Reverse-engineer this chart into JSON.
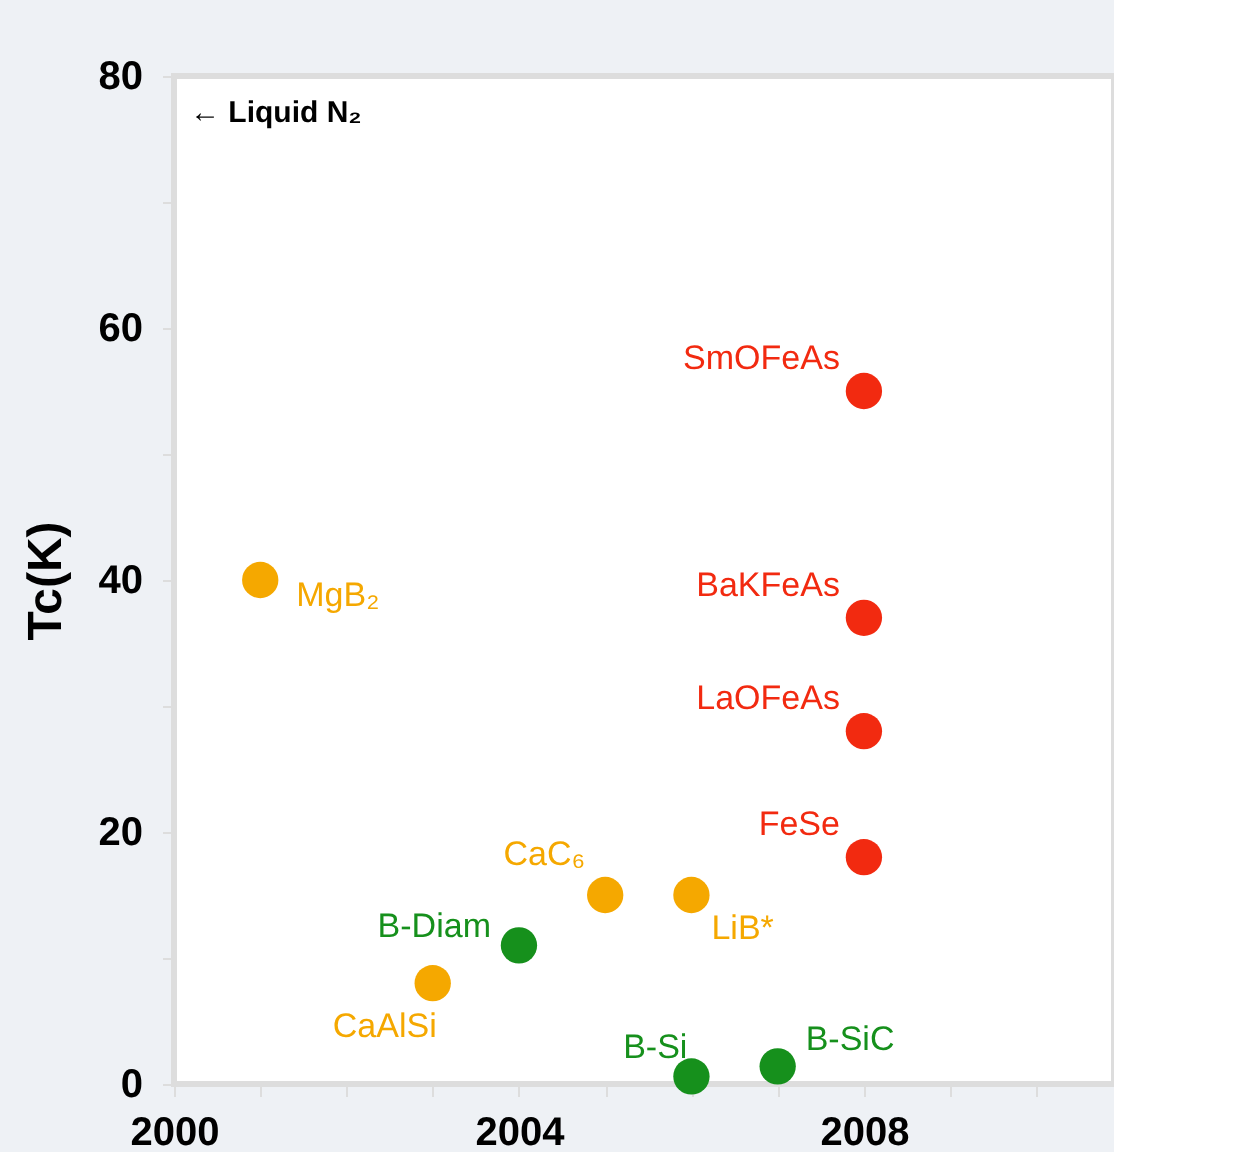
{
  "chart_data": {
    "type": "scatter",
    "ylabel": "Tc(K)",
    "xlim": [
      2000,
      2010.9
    ],
    "ylim": [
      0,
      80
    ],
    "xticks": [
      2000,
      {
        "value": 2001,
        "label": null
      },
      {
        "value": 2002,
        "label": null
      },
      {
        "value": 2003,
        "label": null
      },
      2004,
      {
        "value": 2005,
        "label": null
      },
      {
        "value": 2006,
        "label": null
      },
      {
        "value": 2007,
        "label": null
      },
      2008,
      {
        "value": 2009,
        "label": null
      },
      {
        "value": 2010,
        "label": null
      }
    ],
    "yticks": [
      0,
      {
        "value": 10,
        "label": null
      },
      20,
      {
        "value": 30,
        "label": null
      },
      40,
      {
        "value": 50,
        "label": null
      },
      60,
      {
        "value": 70,
        "label": null
      },
      80
    ],
    "marker": "circle",
    "series": [
      {
        "color": "#f5a800",
        "x": [
          2001,
          2003,
          2005,
          2006
        ],
        "values": [
          40,
          8,
          15,
          15
        ]
      },
      {
        "color": "#16901c",
        "x": [
          2004,
          2006,
          2007
        ],
        "values": [
          11,
          0.6,
          1.4
        ]
      },
      {
        "color": "#f22a10",
        "x": [
          2008,
          2008,
          2008,
          2008
        ],
        "values": [
          55,
          37,
          28,
          18
        ]
      }
    ],
    "annotations": [
      "← Liquid N₂",
      {
        "text": "MgB₂",
        "x": 2001,
        "y": 40
      },
      {
        "text": "CaAlSi",
        "x": 2003,
        "y": 8
      },
      {
        "text": "CaC₆",
        "x": 2005,
        "y": 15
      },
      {
        "text": "LiB*",
        "x": 2006,
        "y": 15
      },
      {
        "text": "B-Diam",
        "x": 2004,
        "y": 11
      },
      {
        "text": "B-Si",
        "x": 2006,
        "y": 0.6
      },
      {
        "text": "B-SiC",
        "x": 2007,
        "y": 1.4
      },
      {
        "text": "SmOFeAs",
        "x": 2008,
        "y": 55
      },
      {
        "text": "BaKFeAs",
        "x": 2008,
        "y": 37
      },
      {
        "text": "LaOFeAs",
        "x": 2008,
        "y": 28
      },
      {
        "text": "FeSe",
        "x": 2008,
        "y": 18
      }
    ]
  }
}
